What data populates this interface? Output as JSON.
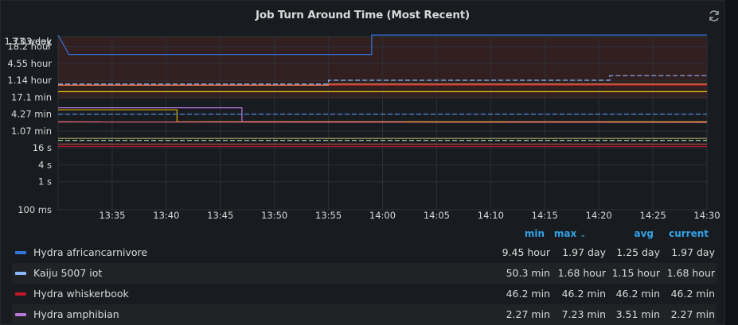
{
  "panel": {
    "title": "Job Turn Around Time (Most Recent)",
    "refresh_icon": "refresh-icon"
  },
  "legend": {
    "headers": {
      "min": "min",
      "max": "max",
      "avg": "avg",
      "current": "current"
    },
    "sort_icon": "chevron-down-icon",
    "rows": [
      {
        "name": "Hydra africancarnivore",
        "color": "#3274d9",
        "min": "9.45 hour",
        "max": "1.97 day",
        "avg": "1.25 day",
        "current": "1.97 day"
      },
      {
        "name": "Kaiju 5007 iot",
        "color": "#8ab8ff",
        "min": "50.3 min",
        "max": "1.68 hour",
        "avg": "1.15 hour",
        "current": "1.68 hour"
      },
      {
        "name": "Hydra whiskerbook",
        "color": "#c4162a",
        "min": "46.2 min",
        "max": "46.2 min",
        "avg": "46.2 min",
        "current": "46.2 min"
      },
      {
        "name": "Hydra amphibian",
        "color": "#b877d9",
        "min": "2.27 min",
        "max": "7.23 min",
        "avg": "3.51 min",
        "current": "2.27 min"
      }
    ]
  },
  "chart_data": {
    "type": "line",
    "title": "Job Turn Around Time (Most Recent)",
    "y_scale": "log",
    "ylim_seconds": [
      0.1,
      150000
    ],
    "y_ticks": [
      {
        "label": "1.73 week",
        "seconds": 1046304
      },
      {
        "label": "3.03 day",
        "seconds": 261792
      },
      {
        "label": "18.2 hour",
        "seconds": 65520
      },
      {
        "label": "4.55 hour",
        "seconds": 16380
      },
      {
        "label": "1.14 hour",
        "seconds": 4104
      },
      {
        "label": "17.1 min",
        "seconds": 1026
      },
      {
        "label": "4.27 min",
        "seconds": 256
      },
      {
        "label": "1.07 min",
        "seconds": 64
      },
      {
        "label": "16 s",
        "seconds": 16
      },
      {
        "label": "4 s",
        "seconds": 4
      },
      {
        "label": "1 s",
        "seconds": 1
      },
      {
        "label": "100 ms",
        "seconds": 0.1
      }
    ],
    "x_ticks": [
      "13:35",
      "13:40",
      "13:45",
      "13:50",
      "13:55",
      "14:00",
      "14:05",
      "14:10",
      "14:15",
      "14:20",
      "14:25",
      "14:30"
    ],
    "xlim": [
      "13:30",
      "14:30"
    ],
    "grid": true,
    "threshold_band": {
      "color": "#3b2323",
      "from_seconds": 900,
      "to_seconds": 1046304
    },
    "series": [
      {
        "name": "Hydra africancarnivore",
        "color": "#3274d9",
        "dash": false,
        "points": [
          [
            "13:30",
            "1.97 day"
          ],
          [
            "13:31",
            "9.45 hour"
          ],
          [
            "13:59",
            "9.45 hour"
          ],
          [
            "13:59",
            "1.97 day"
          ],
          [
            "14:30",
            "1.97 day"
          ]
        ]
      },
      {
        "name": "Kaiju 5007 iot",
        "color": "#8ab8ff",
        "dash": true,
        "points": [
          [
            "13:30",
            "50.3 min"
          ],
          [
            "13:55",
            "50.3 min"
          ],
          [
            "13:55",
            "1.15 hour"
          ],
          [
            "14:21",
            "1.15 hour"
          ],
          [
            "14:21",
            "1.68 hour"
          ],
          [
            "14:30",
            "1.68 hour"
          ]
        ]
      },
      {
        "name": "Hydra whiskerbook",
        "color": "#c4162a",
        "dash": false,
        "points": [
          [
            "13:30",
            "46.2 min"
          ],
          [
            "14:30",
            "46.2 min"
          ]
        ]
      },
      {
        "name": "Hydra amphibian",
        "color": "#b877d9",
        "dash": false,
        "points": [
          [
            "13:30",
            "7.23 min"
          ],
          [
            "13:47",
            "7.23 min"
          ],
          [
            "13:47",
            "2.27 min"
          ],
          [
            "14:30",
            "2.27 min"
          ]
        ]
      },
      {
        "name": "",
        "color": "#e0b400",
        "dash": false,
        "points": [
          [
            "13:30",
            "6.1 min"
          ],
          [
            "13:41",
            "6.1 min"
          ],
          [
            "13:41",
            "2.27 min"
          ],
          [
            "14:30",
            "2.27 min"
          ]
        ]
      },
      {
        "name": "",
        "color": "#f2cc0c",
        "dash": false,
        "points": [
          [
            "13:30",
            "27 min"
          ],
          [
            "14:30",
            "27 min"
          ]
        ]
      },
      {
        "name": "",
        "color": "#e8854d",
        "dash": false,
        "points": [
          [
            "13:30",
            "46.2 min"
          ],
          [
            "13:55",
            "46.2 min"
          ],
          [
            "13:55",
            "50.3 min"
          ],
          [
            "14:30",
            "50.3 min"
          ]
        ]
      },
      {
        "name": "",
        "color": "#5794f2",
        "dash": true,
        "points": [
          [
            "13:30",
            "4.27 min"
          ],
          [
            "14:30",
            "4.27 min"
          ]
        ]
      },
      {
        "name": "",
        "color": "#ff7383",
        "dash": false,
        "points": [
          [
            "13:30",
            "2.27 min"
          ],
          [
            "14:30",
            "2.2 min"
          ]
        ]
      },
      {
        "name": "",
        "color": "#a7a36b",
        "dash": false,
        "points": [
          [
            "13:30",
            "35 s"
          ],
          [
            "14:30",
            "35 s"
          ]
        ]
      },
      {
        "name": "",
        "color": "#96d98d",
        "dash": true,
        "points": [
          [
            "13:30",
            "30 s"
          ],
          [
            "14:30",
            "30 s"
          ]
        ]
      },
      {
        "name": "",
        "color": "#b84a4a",
        "dash": false,
        "points": [
          [
            "13:30",
            "22 s"
          ],
          [
            "14:30",
            "22 s"
          ]
        ]
      },
      {
        "name": "",
        "color": "#c4162a",
        "dash": false,
        "points": [
          [
            "13:30",
            "18 s"
          ],
          [
            "14:30",
            "18 s"
          ]
        ]
      }
    ]
  }
}
